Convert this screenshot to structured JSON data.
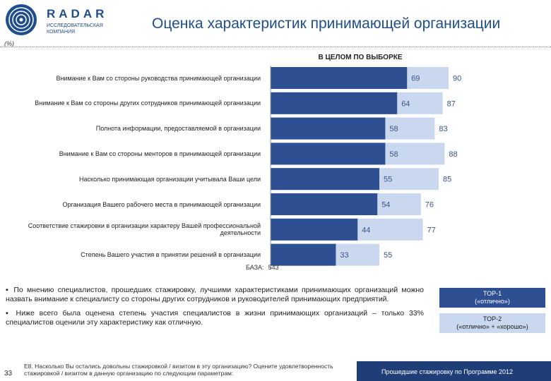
{
  "header": {
    "brand": "RADAR",
    "brand_sub": "ИССЛЕДОВАТЕЛЬСКАЯ КОМПАНИЯ",
    "title": "Оценка характеристик принимающей организации",
    "unit": "(%)"
  },
  "chart_data": {
    "type": "bar",
    "orientation": "horizontal",
    "title": "В ЦЕЛОМ ПО ВЫБОРКЕ",
    "categories": [
      "Внимание к Вам со стороны руководства принимающей организации",
      "Внимание к Вам со стороны других сотрудников принимающей организации",
      "Полнота информации, предоставляемой в организации",
      "Внимание к Вам со стороны менторов в принимающей организации",
      "Насколько принимающая организации учитывала Ваши цели",
      "Организация Вашего рабочего места в принимающей организации",
      "Соответствие стажировки в организации характеру Вашей профессиональной деятельности",
      "Степень Вашего участия в принятии решений в организации"
    ],
    "series": [
      {
        "name": "TOP-1",
        "color": "#2e4f91",
        "values": [
          69,
          64,
          58,
          58,
          55,
          54,
          44,
          33
        ]
      },
      {
        "name": "TOP-2",
        "color": "#c9d8ee",
        "values": [
          90,
          87,
          83,
          88,
          85,
          76,
          77,
          55
        ]
      }
    ],
    "xlim": [
      0,
      100
    ]
  },
  "base": {
    "label": "БАЗА:",
    "value": "543"
  },
  "notes": [
    "▪ По мнению специалистов, прошедших стажировку, лучшими характеристиками принимающих организаций можно назвать внимание к специалисту со стороны других сотрудников и руководителей принимающих предприятий.",
    "▪ Ниже всего была оценена степень участия специалистов в жизни принимающих организаций – только 33% специалистов оценили эту характеристику как отличную."
  ],
  "legend": {
    "top1_line1": "TOP-1",
    "top1_line2": "(«отлично»)",
    "top2_line1": "TOP-2",
    "top2_line2": "(«отлично» + «хорошо»)"
  },
  "footer": {
    "page": "33",
    "question": "E8. Насколько Вы остались довольны стажировкой / визитом в эту организацию? Оцените удовлетворенность стажировкой / визитом в данную организацию по следующим параметрам:",
    "program": "Прошедшие стажировку по Программе 2012"
  }
}
